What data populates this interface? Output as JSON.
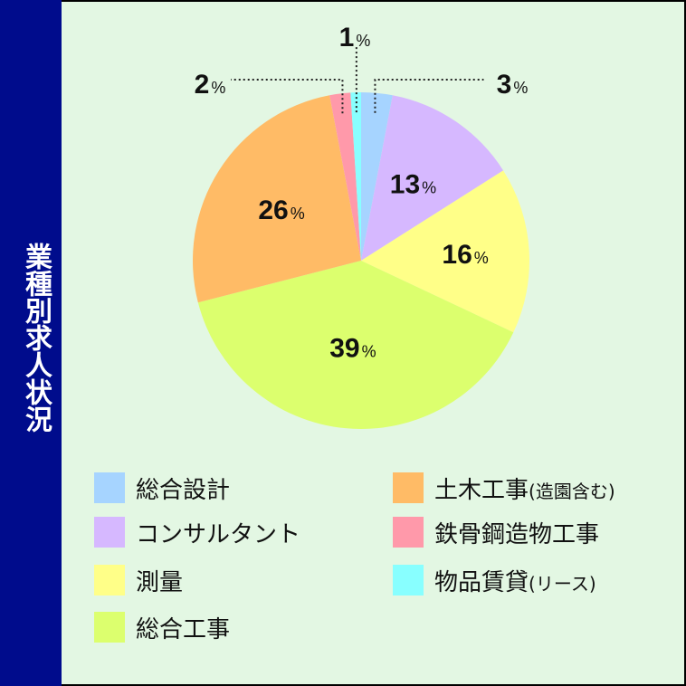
{
  "side_title": "業種別求人状況",
  "chart_data": {
    "type": "pie",
    "title": "業種別求人状況",
    "slices": [
      {
        "label": "総合設計",
        "value": 3,
        "color": "#a6d4ff"
      },
      {
        "label": "コンサルタント",
        "value": 13,
        "color": "#d6b8ff"
      },
      {
        "label": "測量",
        "value": 16,
        "color": "#ffff88"
      },
      {
        "label": "総合工事",
        "value": 39,
        "color": "#dcff6e"
      },
      {
        "label": "土木工事(造園含む)",
        "value": 26,
        "color": "#ffbb66"
      },
      {
        "label": "鉄骨鋼造物工事",
        "value": 2,
        "color": "#ff99aa"
      },
      {
        "label": "物品賃貸(リース)",
        "value": 1,
        "color": "#88ffff"
      }
    ],
    "percent_sign": "%"
  },
  "legend": {
    "left": [
      {
        "label": "総合設計",
        "color": "#a6d4ff"
      },
      {
        "label": "コンサルタント",
        "color": "#d6b8ff"
      },
      {
        "label": "測量",
        "color": "#ffff88"
      },
      {
        "label": "総合工事",
        "color": "#dcff6e"
      }
    ],
    "right": [
      {
        "label_main": "土木工事",
        "label_sub": "(造園含む)",
        "color": "#ffbb66"
      },
      {
        "label_main": "鉄骨鋼造物工事",
        "label_sub": "",
        "color": "#ff99aa"
      },
      {
        "label_main": "物品賃貸",
        "label_sub": "(リース)",
        "color": "#88ffff"
      }
    ]
  }
}
